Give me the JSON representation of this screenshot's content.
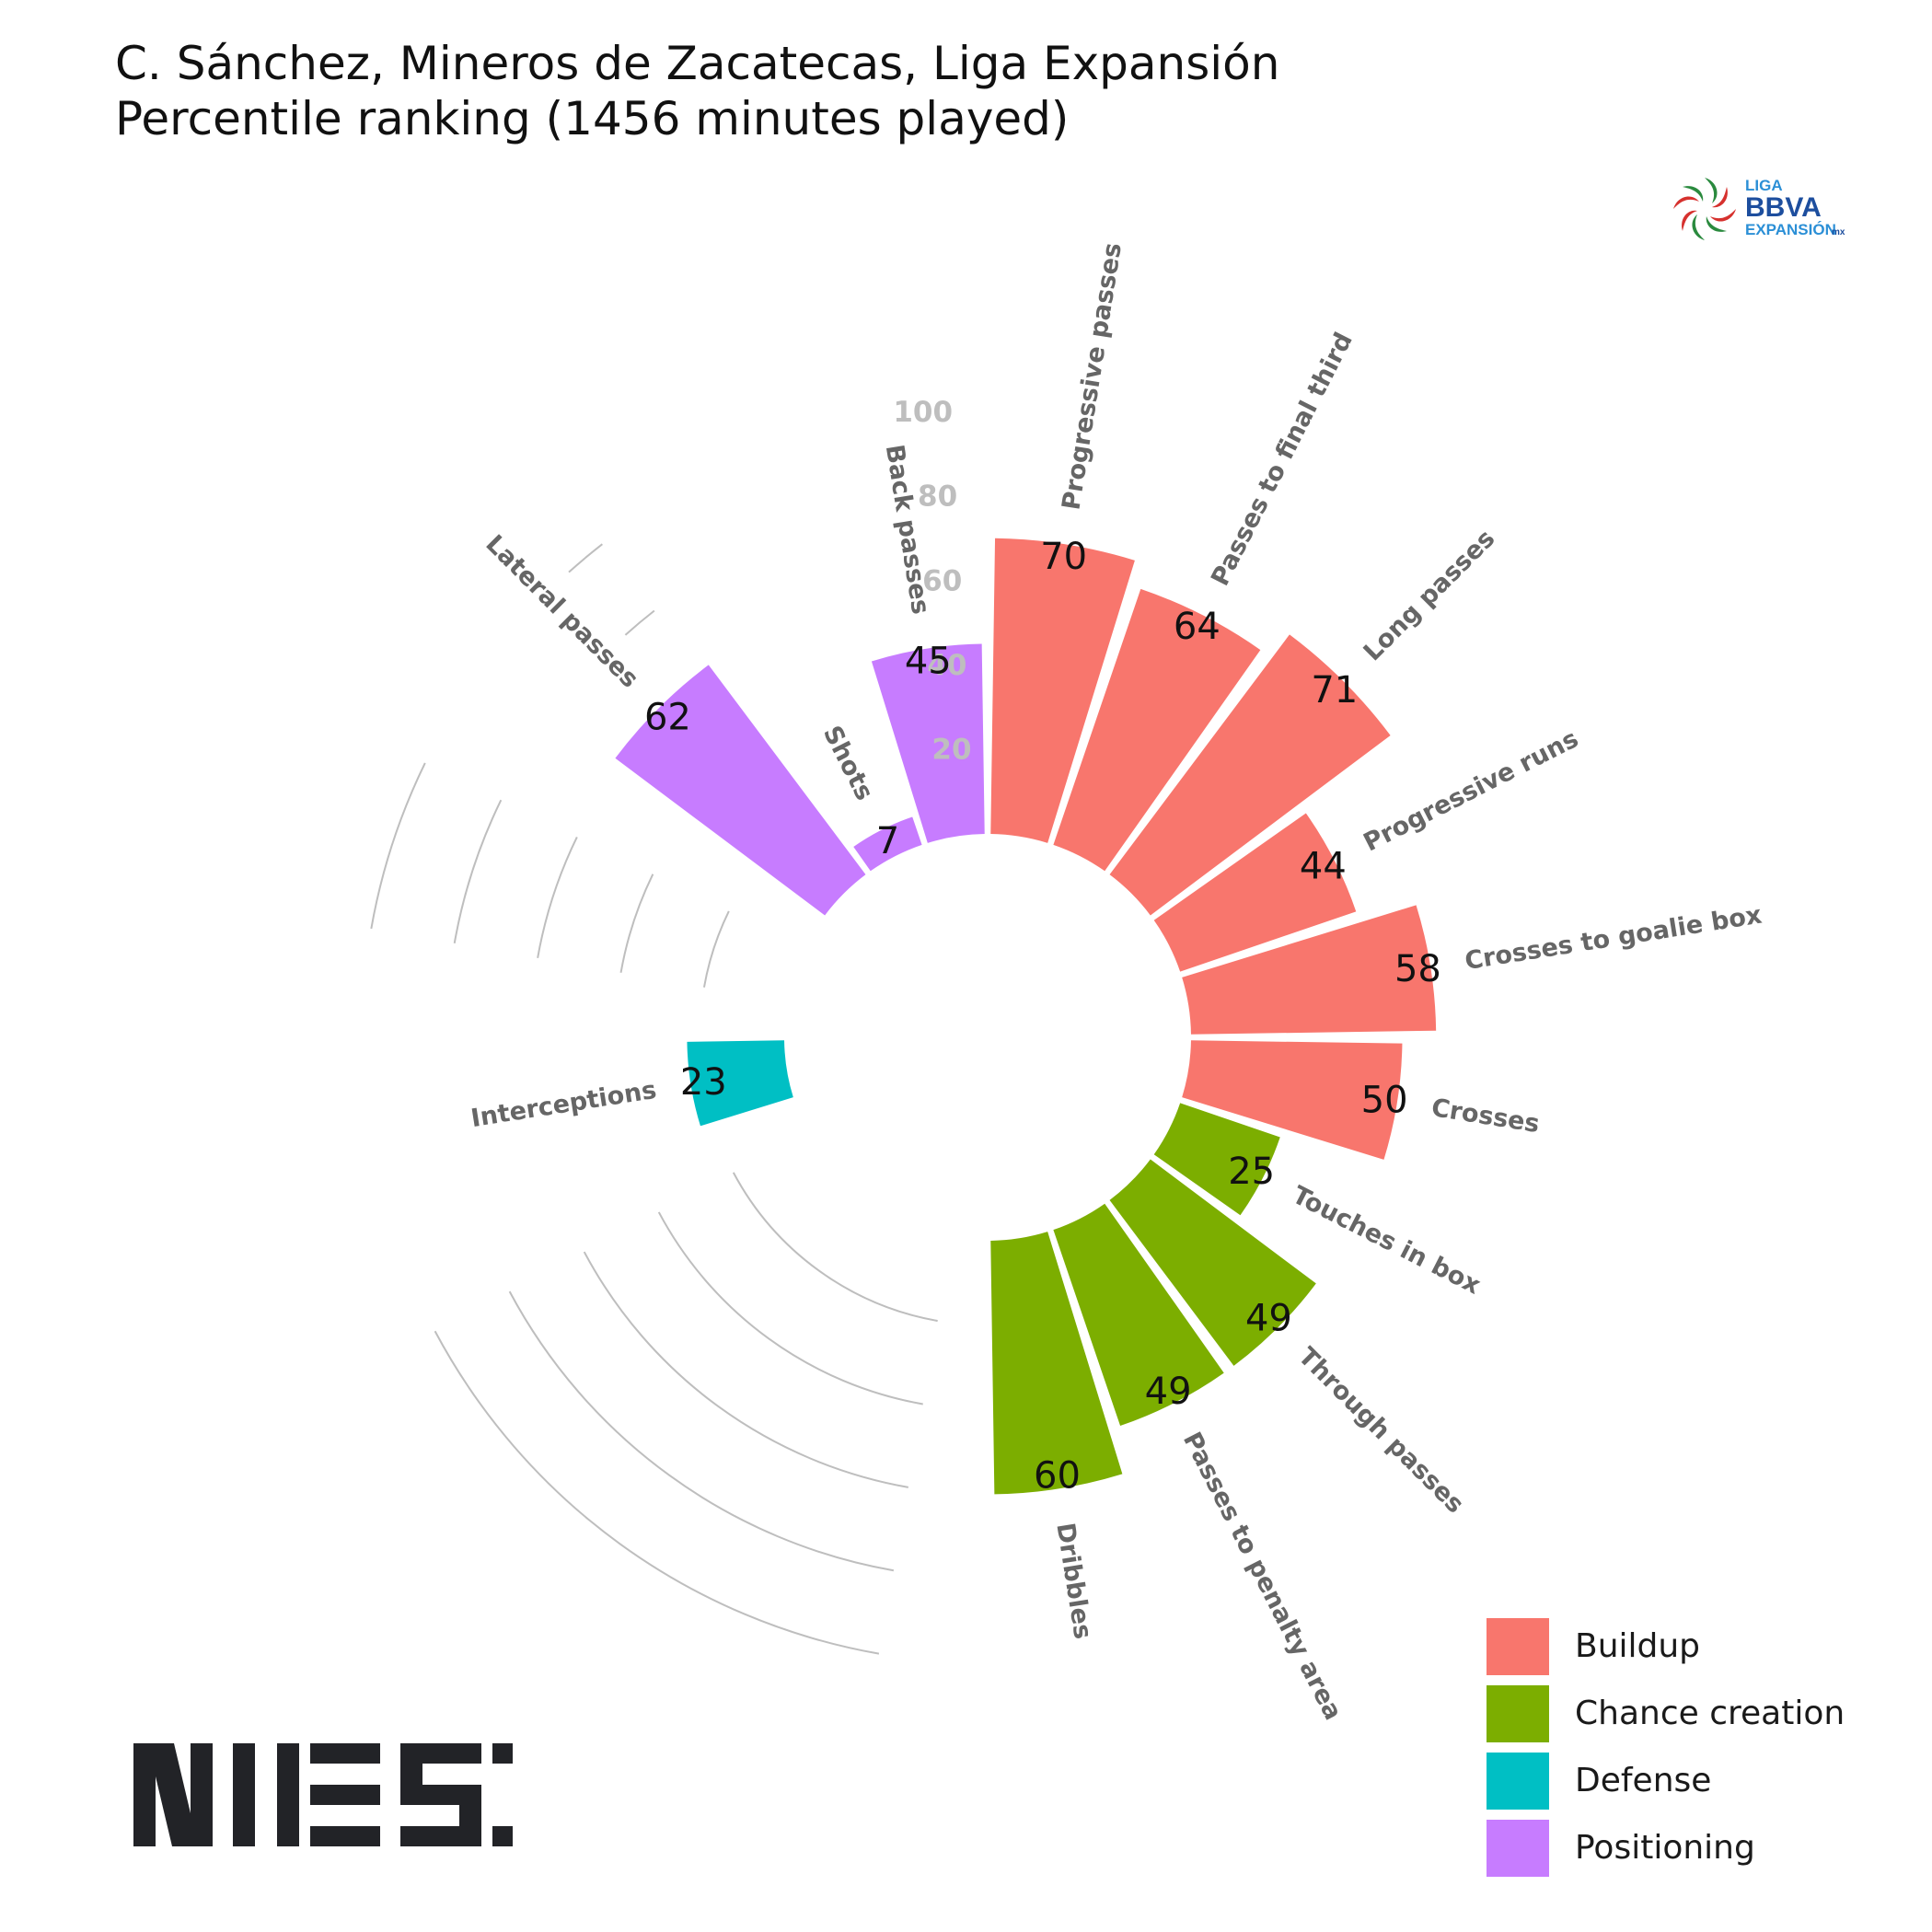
{
  "title": "C. Sánchez, Mineros de Zacatecas, Liga Expansión",
  "subtitle": "Percentile ranking (1456 minutes played)",
  "logo": {
    "line1": "LIGA",
    "line2": "BBVA",
    "line3": "EXPANSIÓN",
    "suffix": "mx"
  },
  "brand_logo": "NIES",
  "colors": {
    "Buildup": "#F8766D",
    "Chance creation": "#7CAE00",
    "Defense": "#00BFC4",
    "Positioning": "#C77CFF",
    "metric_label": "#666666",
    "tick_label": "#BEBEBE",
    "grid": "#BEBEBE"
  },
  "chart_data": {
    "type": "polar-bar",
    "title": "C. Sánchez, Mineros de Zacatecas, Liga Expansión",
    "subtitle": "Percentile ranking (1456 minutes played)",
    "ylim": [
      0,
      100
    ],
    "radial_ticks": [
      "20",
      "40",
      "60",
      "80",
      "100"
    ],
    "legend": {
      "position": "bottom-right",
      "entries": [
        "Buildup",
        "Chance creation",
        "Defense",
        "Positioning"
      ]
    },
    "categories": [
      "Progressive passes",
      "Passes to final third",
      "Long passes",
      "Progressive runs",
      "Crosses to goalie box",
      "Crosses",
      "Touches in box",
      "Through passes",
      "Passes to penalty area",
      "Dribbles",
      "Interceptions",
      "Lateral passes",
      "Shots",
      "Back passes"
    ],
    "values": [
      70,
      64,
      71,
      44,
      58,
      50,
      25,
      49,
      49,
      60,
      23,
      62,
      7,
      45
    ],
    "groups": [
      "Buildup",
      "Buildup",
      "Buildup",
      "Buildup",
      "Buildup",
      "Buildup",
      "Chance creation",
      "Chance creation",
      "Chance creation",
      "Chance creation",
      "Defense",
      "Positioning",
      "Positioning",
      "Positioning"
    ],
    "value_labels": [
      "70",
      "64",
      "71",
      "44",
      "58",
      "50",
      "25",
      "49",
      "49",
      "60",
      "23",
      "62",
      "7",
      "45"
    ]
  }
}
